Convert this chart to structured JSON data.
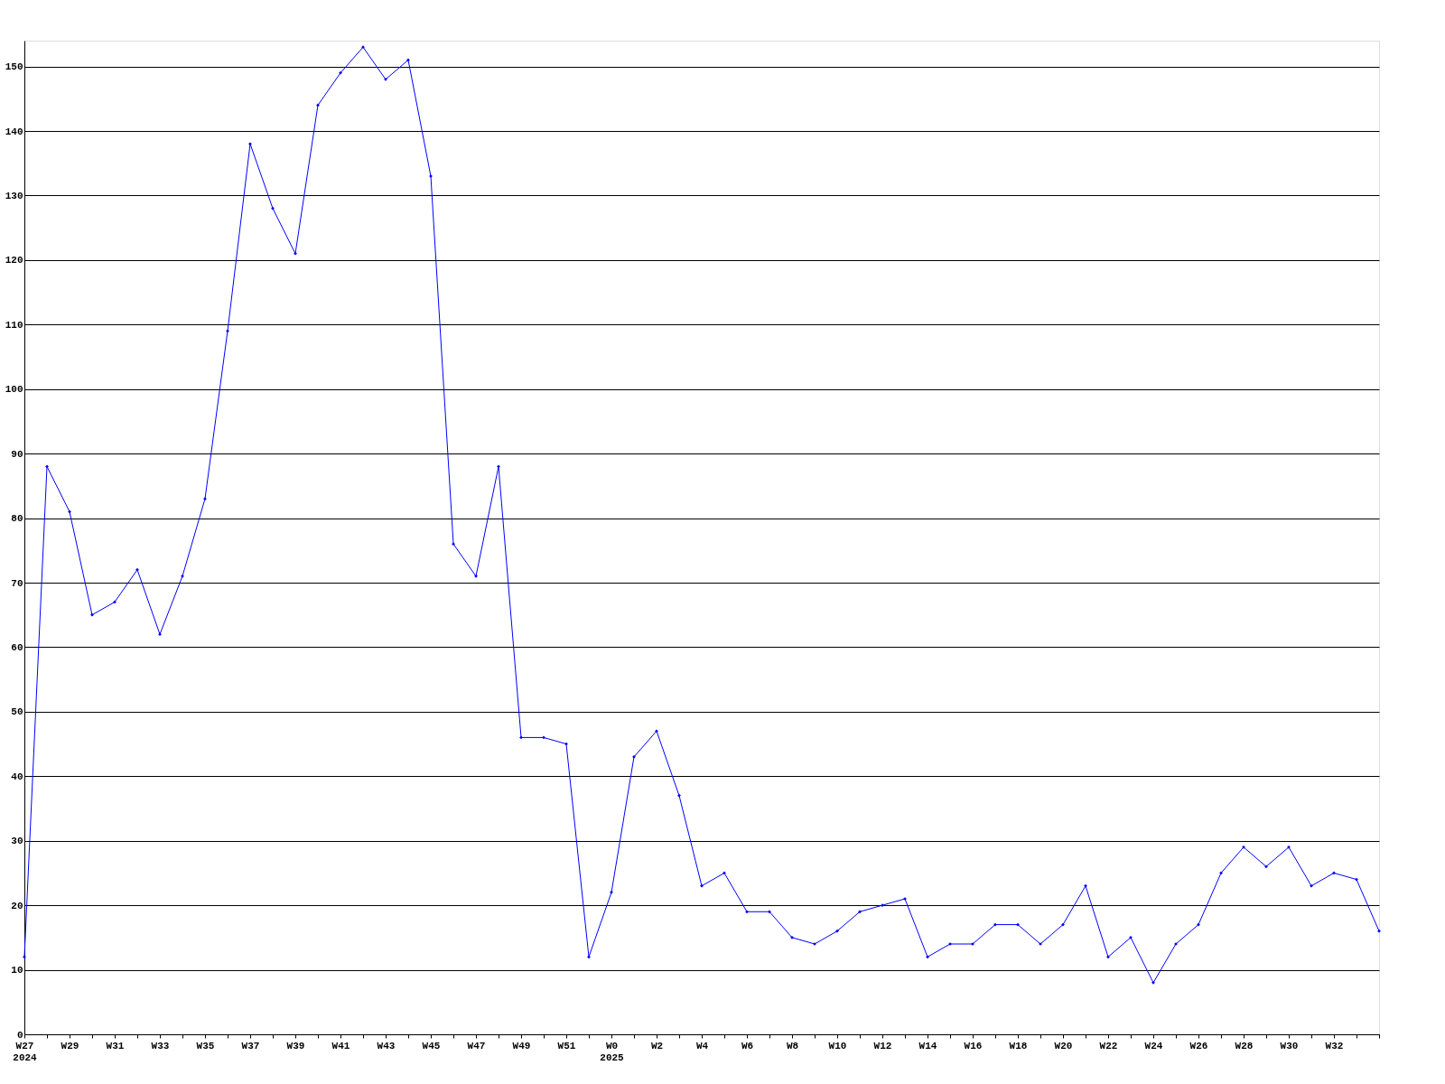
{
  "chart_data": {
    "type": "line",
    "categories": [
      "W27\n2024",
      null,
      "W29",
      null,
      "W31",
      null,
      "W33",
      null,
      "W35",
      null,
      "W37",
      null,
      "W39",
      null,
      "W41",
      null,
      "W43",
      null,
      "W45",
      null,
      "W47",
      null,
      "W49",
      null,
      "W51",
      null,
      "W0\n2025",
      null,
      "W2",
      null,
      "W4",
      null,
      "W6",
      null,
      "W8",
      null,
      "W10",
      null,
      "W12",
      null,
      "W14",
      null,
      "W16",
      null,
      "W18",
      null,
      "W20",
      null,
      "W22",
      null,
      "W24",
      null,
      "W26",
      null,
      "W28",
      null,
      "W30",
      null,
      "W32",
      null,
      null
    ],
    "series": [
      {
        "color": "#0000ff",
        "values": [
          12,
          88,
          81,
          65,
          67,
          72,
          62,
          71,
          83,
          109,
          138,
          128,
          121,
          144,
          149,
          153,
          148,
          151,
          133,
          76,
          71,
          88,
          46,
          46,
          45,
          12,
          22,
          43,
          47,
          37,
          23,
          25,
          19,
          19,
          15,
          14,
          16,
          19,
          20,
          21,
          12,
          14,
          14,
          17,
          17,
          14,
          17,
          23,
          12,
          15,
          8,
          14,
          17,
          25,
          29,
          26,
          29,
          23,
          25,
          24,
          16
        ]
      }
    ],
    "ylim": [
      0,
      154
    ],
    "yticks": [
      0,
      10,
      20,
      30,
      40,
      50,
      60,
      70,
      80,
      90,
      100,
      110,
      120,
      130,
      140,
      150
    ],
    "grid": "y",
    "marker": "diamond",
    "line_style": "solid"
  }
}
